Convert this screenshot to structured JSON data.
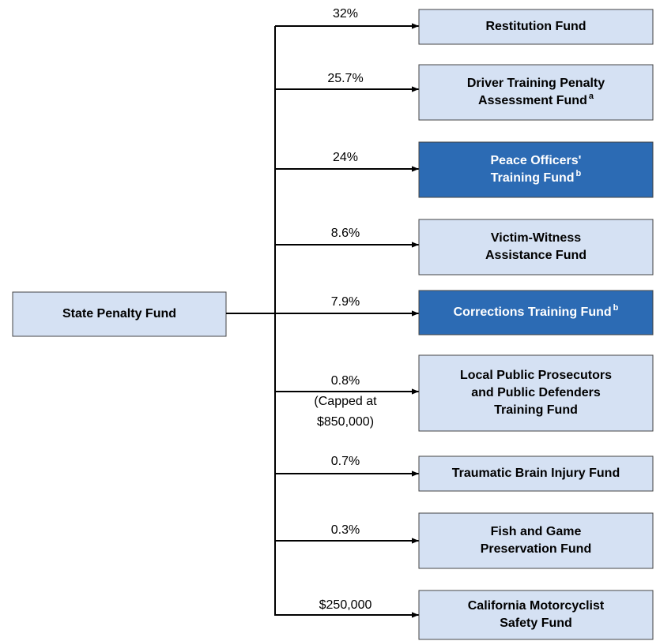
{
  "source": "State Penalty Fund",
  "branches": [
    {
      "label": [
        "32%"
      ],
      "fund": [
        "Restitution Fund"
      ]
    },
    {
      "label": [
        "25.7%"
      ],
      "fund": [
        "Driver Training Penalty",
        "Assessment Fund"
      ],
      "note": "a"
    },
    {
      "label": [
        "24%"
      ],
      "fund": [
        "Peace Officers'",
        "Training Fund"
      ],
      "note": "b",
      "highlight": true
    },
    {
      "label": [
        "8.6%"
      ],
      "fund": [
        "Victim-Witness",
        "Assistance Fund"
      ]
    },
    {
      "label": [
        "7.9%"
      ],
      "fund": [
        "Corrections Training Fund"
      ],
      "note": "b",
      "highlight": true
    },
    {
      "label": [
        "0.8%",
        "(Capped at",
        "$850,000)"
      ],
      "fund": [
        "Local Public Prosecutors",
        "and Public Defenders",
        "Training Fund"
      ]
    },
    {
      "label": [
        "0.7%"
      ],
      "fund": [
        "Traumatic Brain Injury Fund"
      ]
    },
    {
      "label": [
        "0.3%"
      ],
      "fund": [
        "Fish and Game",
        "Preservation Fund"
      ]
    },
    {
      "label": [
        "$250,000"
      ],
      "fund": [
        "California Motorcyclist",
        "Safety Fund"
      ]
    }
  ]
}
